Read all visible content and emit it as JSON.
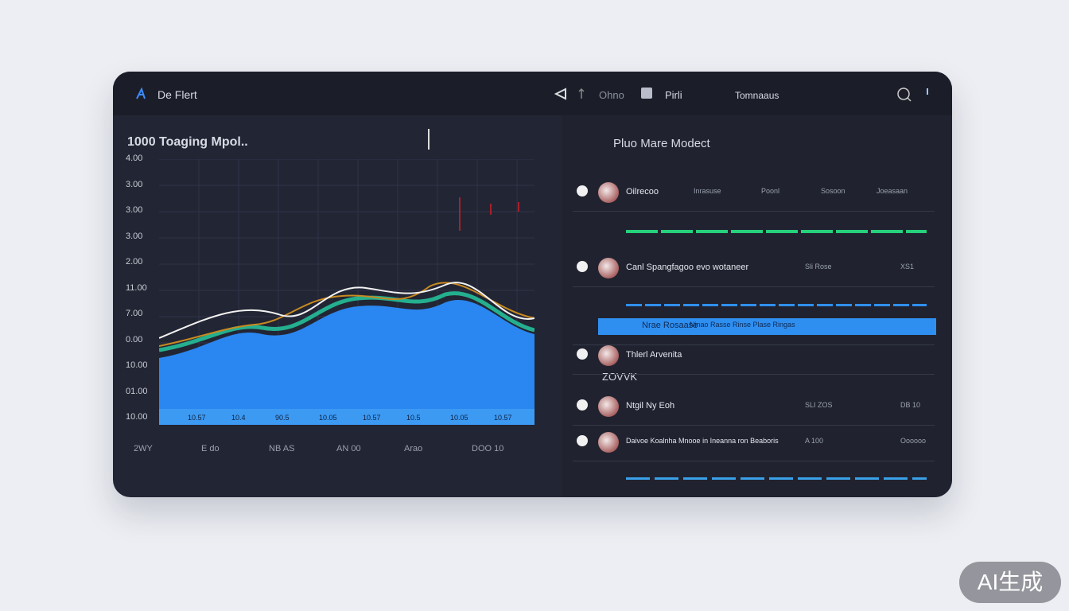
{
  "header": {
    "brand": "De Flert",
    "nav": [
      "Ohno",
      "Pirli",
      "Tomnaaus"
    ]
  },
  "chart": {
    "title": "1000 Toaging Mpol..",
    "y_labels": [
      "4.00",
      "3.00",
      "3.00",
      "3.00",
      "2.00",
      "11.00",
      "7.00",
      "0.00",
      "10.00",
      "01.00",
      "10.00"
    ],
    "inner_labels": [
      "10.57",
      "10.4",
      "90.5",
      "10.05",
      "10.57",
      "10.5",
      "10.05",
      "10.57"
    ],
    "x_labels": [
      "2WY",
      "E do",
      "NB AS",
      "AN 00",
      "Arao",
      "DOO 10"
    ]
  },
  "panel": {
    "title": "Pluo Mare Modect",
    "rows": [
      [
        "Oilrecoo",
        "Inrasuse",
        "Poonl",
        "Sosoon",
        "Joeasaan"
      ],
      [
        "Canl Spangfagoo evo wotaneer",
        "Sli Rose",
        "XS1"
      ],
      [
        "Nrae Rosaase",
        "Ninao Rasse Rinse Plase Ringas"
      ],
      [
        "Thlerl Arvenita",
        "ZOVVK"
      ],
      [
        "Ntgil Ny Eoh",
        "SLI ZOS",
        "DB 10"
      ],
      [
        "Daivoe Koalnha Mnooe in Ineanna ron Beaboris",
        "A 100",
        "Oooooo"
      ]
    ]
  },
  "badge": "AI生成"
}
